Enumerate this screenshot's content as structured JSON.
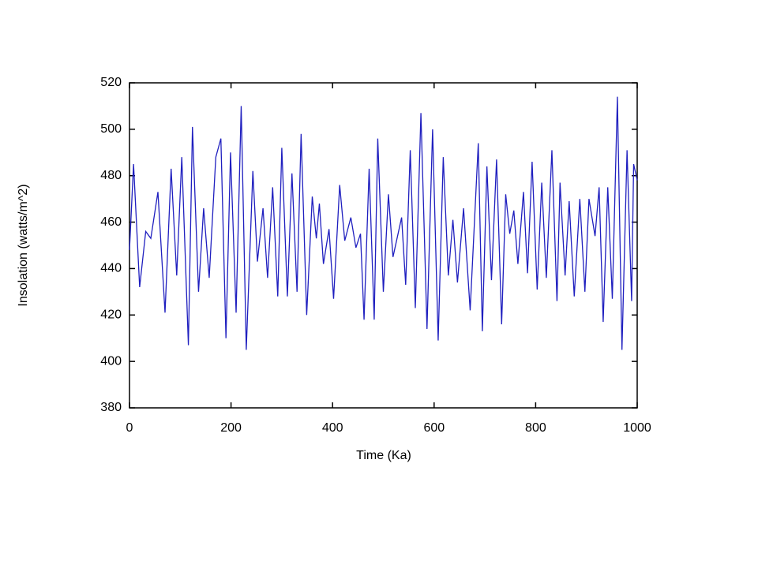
{
  "chart_data": {
    "type": "line",
    "xlabel": "Time (Ka)",
    "ylabel": "Insolation (watts/m^2)",
    "color": "#1f1fbf",
    "xlim": [
      0,
      1000
    ],
    "xticks": [
      0,
      200,
      400,
      600,
      800,
      1000
    ],
    "ylim": [
      380,
      520
    ],
    "yticks": [
      380,
      400,
      420,
      440,
      460,
      480,
      500,
      520
    ],
    "x": [
      0,
      8,
      20,
      32,
      42,
      56,
      70,
      82,
      93,
      103,
      116,
      124,
      136,
      146,
      157,
      170,
      180,
      190,
      199,
      210,
      220,
      230,
      243,
      252,
      263,
      272,
      282,
      292,
      300,
      311,
      320,
      330,
      338,
      349,
      360,
      368,
      374,
      382,
      393,
      402,
      414,
      424,
      436,
      446,
      455,
      462,
      472,
      482,
      489,
      500,
      510,
      519,
      536,
      544,
      553,
      563,
      574,
      586,
      597,
      608,
      618,
      628,
      637,
      646,
      658,
      671,
      687,
      695,
      704,
      713,
      723,
      733,
      741,
      749,
      757,
      765,
      776,
      784,
      793,
      803,
      812,
      821,
      832,
      842,
      848,
      858,
      866,
      876,
      887,
      897,
      905,
      917,
      925,
      933,
      942,
      951,
      961,
      970,
      980,
      989,
      993,
      1000
    ],
    "values": [
      448,
      485,
      432,
      456,
      453,
      473,
      421,
      483,
      437,
      488,
      407,
      501,
      430,
      466,
      436,
      488,
      496,
      410,
      490,
      421,
      510,
      405,
      482,
      443,
      466,
      436,
      475,
      428,
      492,
      428,
      481,
      430,
      498,
      420,
      471,
      453,
      468,
      442,
      457,
      427,
      476,
      452,
      462,
      449,
      455,
      418,
      483,
      418,
      496,
      430,
      472,
      445,
      462,
      433,
      491,
      423,
      507,
      414,
      500,
      409,
      488,
      437,
      461,
      434,
      466,
      422,
      494,
      413,
      484,
      435,
      487,
      416,
      472,
      455,
      465,
      442,
      473,
      438,
      486,
      431,
      477,
      436,
      491,
      426,
      477,
      437,
      469,
      428,
      470,
      430,
      470,
      454,
      475,
      417,
      475,
      427,
      514,
      405,
      491,
      426,
      485,
      478
    ]
  }
}
